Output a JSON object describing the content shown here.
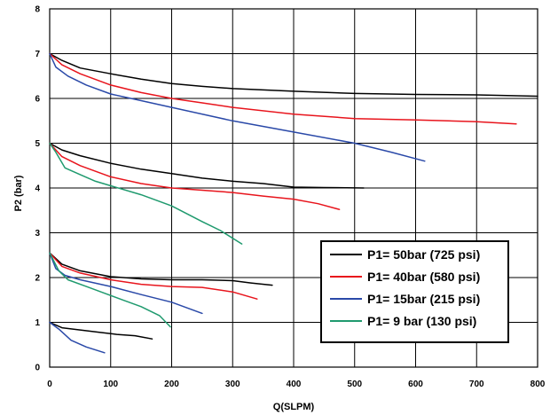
{
  "chart_data": {
    "type": "line",
    "xlabel": "Q(SLPM)",
    "ylabel": "P2 (bar)",
    "xlim": [
      0,
      800
    ],
    "ylim": [
      0,
      8
    ],
    "xticks": [
      0,
      100,
      200,
      300,
      400,
      500,
      600,
      700,
      800
    ],
    "yticks": [
      0,
      1,
      2,
      3,
      4,
      5,
      6,
      7,
      8
    ],
    "grid": true,
    "legend_position": "bottom-right",
    "series_colors": {
      "P1= 50bar (725 psi)": "#000000",
      "P1= 40bar (580 psi)": "#e8141c",
      "P1= 15bar (215 psi)": "#2a49a8",
      "P1= 9 bar (130 psi)": "#1f9a6e"
    },
    "legend": [
      "P1= 50bar (725 psi)",
      "P1= 40bar (580 psi)",
      "P1= 15bar (215 psi)",
      "P1= 9 bar (130 psi)"
    ],
    "series": [
      {
        "name": "P1= 50bar (725 psi)",
        "start_pressure": 7,
        "x": [
          0,
          20,
          50,
          100,
          150,
          200,
          250,
          300,
          400,
          500,
          600,
          700,
          800
        ],
        "y": [
          7.0,
          6.85,
          6.68,
          6.55,
          6.43,
          6.33,
          6.27,
          6.22,
          6.16,
          6.11,
          6.09,
          6.08,
          6.05
        ]
      },
      {
        "name": "P1= 40bar (580 psi)",
        "start_pressure": 7,
        "x": [
          0,
          20,
          50,
          100,
          150,
          200,
          250,
          300,
          400,
          500,
          600,
          700,
          765
        ],
        "y": [
          7.0,
          6.75,
          6.55,
          6.3,
          6.13,
          6.0,
          5.9,
          5.8,
          5.65,
          5.55,
          5.52,
          5.48,
          5.43
        ]
      },
      {
        "name": "P1= 15bar (215 psi)",
        "start_pressure": 7,
        "x": [
          0,
          10,
          30,
          60,
          100,
          150,
          200,
          300,
          400,
          500,
          560,
          615
        ],
        "y": [
          7.0,
          6.7,
          6.5,
          6.3,
          6.1,
          5.95,
          5.8,
          5.5,
          5.25,
          5.0,
          4.8,
          4.6
        ]
      },
      {
        "name": "P1= 50bar (725 psi)",
        "start_pressure": 5,
        "x": [
          0,
          20,
          50,
          100,
          150,
          200,
          250,
          300,
          350,
          400,
          450,
          515
        ],
        "y": [
          5.0,
          4.85,
          4.72,
          4.55,
          4.42,
          4.32,
          4.22,
          4.15,
          4.1,
          4.02,
          4.01,
          4.0
        ]
      },
      {
        "name": "P1= 40bar (580 psi)",
        "start_pressure": 5,
        "x": [
          0,
          20,
          50,
          100,
          150,
          200,
          250,
          300,
          350,
          400,
          440,
          475
        ],
        "y": [
          5.0,
          4.7,
          4.5,
          4.25,
          4.1,
          4.0,
          3.95,
          3.9,
          3.82,
          3.75,
          3.65,
          3.52
        ]
      },
      {
        "name": "P1= 9 bar (130 psi)",
        "start_pressure": 5,
        "x": [
          0,
          10,
          25,
          50,
          75,
          100,
          150,
          200,
          250,
          280,
          315
        ],
        "y": [
          5.0,
          4.8,
          4.45,
          4.3,
          4.15,
          4.05,
          3.85,
          3.6,
          3.25,
          3.05,
          2.75
        ]
      },
      {
        "name": "P1= 50bar (725 psi)",
        "start_pressure": 2.5,
        "x": [
          0,
          20,
          50,
          100,
          150,
          200,
          250,
          300,
          330,
          365
        ],
        "y": [
          2.55,
          2.3,
          2.15,
          2.02,
          1.97,
          1.95,
          1.95,
          1.93,
          1.88,
          1.83
        ]
      },
      {
        "name": "P1= 40bar (580 psi)",
        "start_pressure": 2.5,
        "x": [
          0,
          20,
          50,
          100,
          150,
          200,
          250,
          300,
          340
        ],
        "y": [
          2.55,
          2.25,
          2.1,
          1.95,
          1.85,
          1.8,
          1.78,
          1.68,
          1.52
        ]
      },
      {
        "name": "P1= 15bar (215 psi)",
        "start_pressure": 2.5,
        "x": [
          0,
          10,
          25,
          50,
          100,
          150,
          200,
          250
        ],
        "y": [
          2.55,
          2.2,
          2.05,
          1.95,
          1.8,
          1.62,
          1.45,
          1.2
        ]
      },
      {
        "name": "P1= 9 bar (130 psi)",
        "start_pressure": 2.5,
        "x": [
          0,
          15,
          30,
          60,
          90,
          120,
          150,
          180,
          198
        ],
        "y": [
          2.55,
          2.15,
          1.95,
          1.8,
          1.65,
          1.5,
          1.35,
          1.15,
          0.9
        ]
      },
      {
        "name": "P1= 50bar (725 psi)",
        "start_pressure": 1,
        "x": [
          0,
          20,
          50,
          80,
          110,
          140,
          168
        ],
        "y": [
          1.0,
          0.88,
          0.83,
          0.78,
          0.73,
          0.7,
          0.63
        ]
      },
      {
        "name": "P1= 15bar (215 psi)",
        "start_pressure": 1,
        "x": [
          0,
          15,
          35,
          60,
          90
        ],
        "y": [
          1.0,
          0.85,
          0.6,
          0.45,
          0.32
        ]
      }
    ]
  }
}
